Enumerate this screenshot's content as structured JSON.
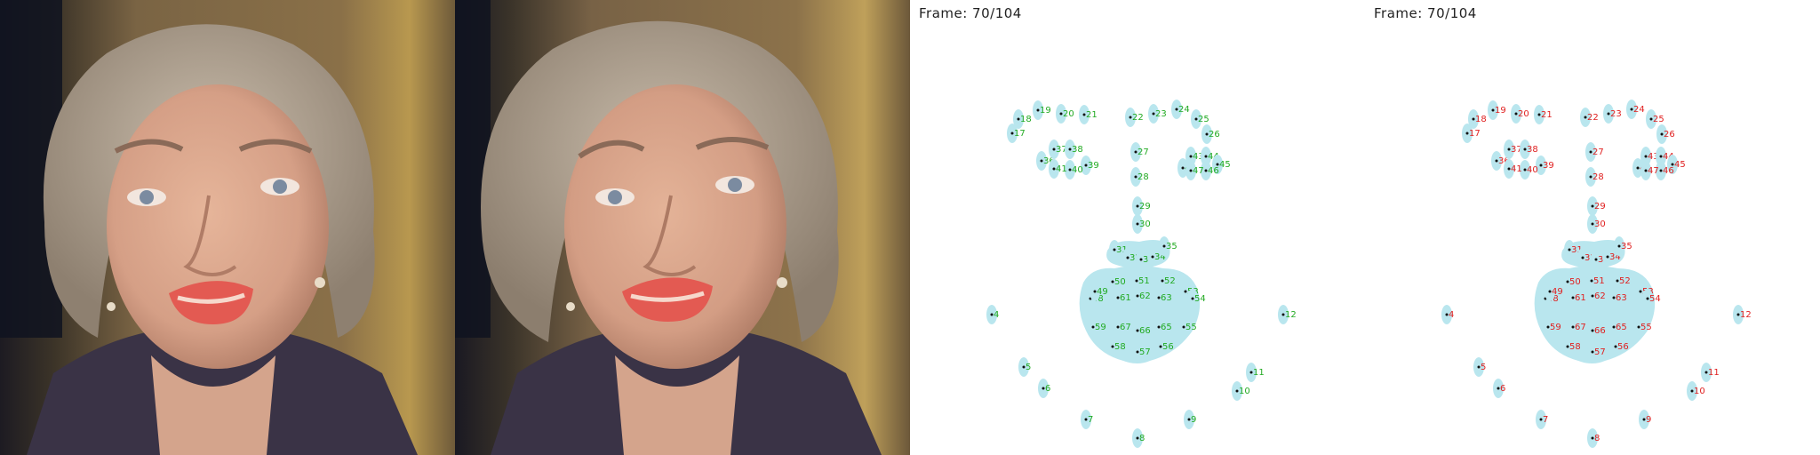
{
  "frame_overlays": {
    "panel3_label": "Frame:  70/104",
    "panel4_label": "Frame:  70/104"
  },
  "colors": {
    "bg_wall": "#6b5a3e",
    "bg_gold": "#b89a58",
    "skin": "#d9a98e",
    "hair": "#b3a595",
    "lips": "#e35a52",
    "jacket": "#3a3346",
    "blob": "#b9e6ee",
    "label_green": "#22aa22",
    "label_red": "#e02020"
  },
  "landmarks": [
    {
      "id": "4"
    },
    {
      "id": "5"
    },
    {
      "id": "6"
    },
    {
      "id": "7"
    },
    {
      "id": "8"
    },
    {
      "id": "9"
    },
    {
      "id": "10"
    },
    {
      "id": "11"
    },
    {
      "id": "12"
    },
    {
      "id": "17"
    },
    {
      "id": "18"
    },
    {
      "id": "19"
    },
    {
      "id": "20"
    },
    {
      "id": "21"
    },
    {
      "id": "22"
    },
    {
      "id": "23"
    },
    {
      "id": "24"
    },
    {
      "id": "25"
    },
    {
      "id": "26"
    },
    {
      "id": "27"
    },
    {
      "id": "28"
    },
    {
      "id": "29"
    },
    {
      "id": "30"
    },
    {
      "id": "31"
    },
    {
      "id": "32"
    },
    {
      "id": "33"
    },
    {
      "id": "34"
    },
    {
      "id": "35"
    },
    {
      "id": "36"
    },
    {
      "id": "37"
    },
    {
      "id": "38"
    },
    {
      "id": "39"
    },
    {
      "id": "40"
    },
    {
      "id": "41"
    },
    {
      "id": "42"
    },
    {
      "id": "43"
    },
    {
      "id": "44"
    },
    {
      "id": "45"
    },
    {
      "id": "46"
    },
    {
      "id": "47"
    },
    {
      "id": "48"
    },
    {
      "id": "49"
    },
    {
      "id": "50"
    },
    {
      "id": "51"
    },
    {
      "id": "52"
    },
    {
      "id": "53"
    },
    {
      "id": "54"
    },
    {
      "id": "55"
    },
    {
      "id": "56"
    },
    {
      "id": "57"
    },
    {
      "id": "58"
    },
    {
      "id": "59"
    },
    {
      "id": "61"
    },
    {
      "id": "62"
    },
    {
      "id": "63"
    },
    {
      "id": "65"
    },
    {
      "id": "66"
    },
    {
      "id": "67"
    }
  ]
}
